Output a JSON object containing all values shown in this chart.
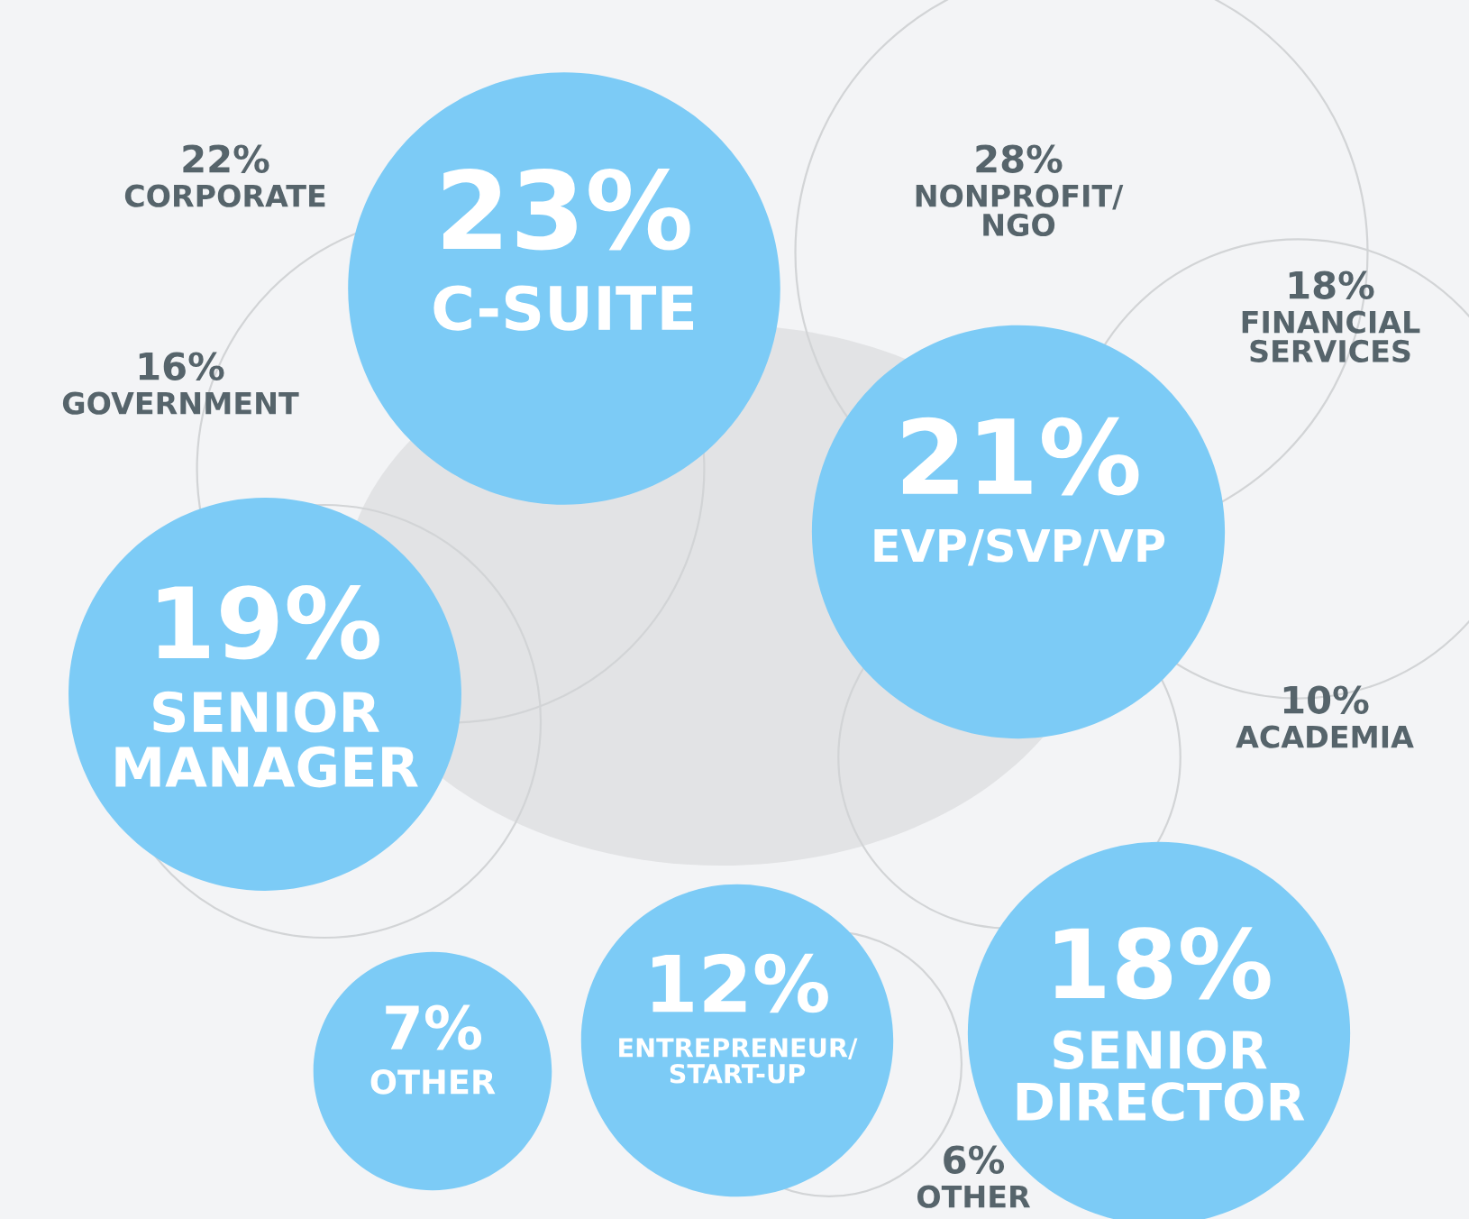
{
  "chart_data": [
    {
      "type": "other",
      "categories": [
        "C-SUITE",
        "EVP/SVP/VP",
        "SENIOR\nMANAGER",
        "SENIOR\nDIRECTOR",
        "ENTREPRENEUR/\nSTART-UP",
        "OTHER"
      ],
      "values": [
        23,
        21,
        19,
        18,
        12,
        7
      ],
      "value_labels": [
        "23%",
        "21%",
        "19%",
        "18%",
        "12%",
        "7%"
      ],
      "color": "#7ccbf6"
    },
    {
      "type": "other",
      "categories": [
        "CORPORATE",
        "GOVERNMENT",
        "NONPROFIT/\nNGO",
        "FINANCIAL\nSERVICES",
        "ACADEMIA",
        "OTHER"
      ],
      "values": [
        22,
        16,
        28,
        18,
        10,
        6
      ],
      "value_labels": [
        "22%",
        "16%",
        "28%",
        "18%",
        "10%",
        "6%"
      ],
      "color": "#56646b"
    }
  ]
}
